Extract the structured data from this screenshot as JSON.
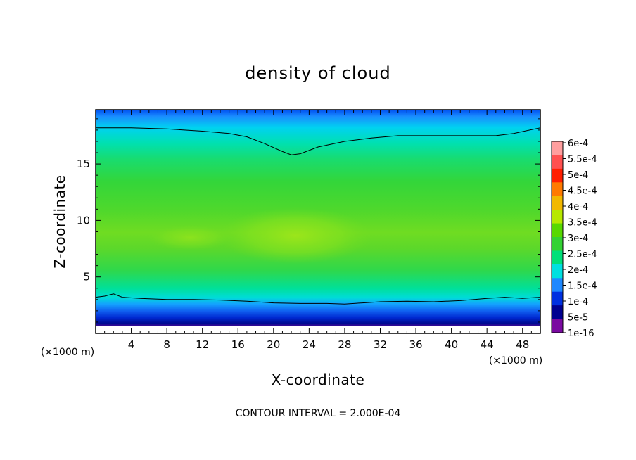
{
  "chart_data": {
    "type": "heatmap",
    "title": "density of cloud",
    "xlabel": "X-coordinate",
    "ylabel": "Z-coordinate",
    "x_unit": "(×1000 m)",
    "z_unit": "(×1000 m)",
    "xlim": [
      0,
      50
    ],
    "ylim": [
      0,
      19.8
    ],
    "x_ticks": [
      4,
      8,
      12,
      16,
      20,
      24,
      28,
      32,
      36,
      40,
      44,
      48
    ],
    "x_tick_labels": [
      "4",
      "8",
      "12",
      "16",
      "20",
      "24",
      "28",
      "32",
      "36",
      "40",
      "44",
      "48"
    ],
    "y_ticks": [
      5,
      10,
      15
    ],
    "y_tick_labels": [
      "5",
      "10",
      "15"
    ],
    "contour_interval_text": "CONTOUR INTERVAL = 2.000E-04",
    "colorbar": {
      "labels": [
        "6e-4",
        "5.5e-4",
        "5e-4",
        "4.5e-4",
        "4e-4",
        "3.5e-4",
        "3e-4",
        "2.5e-4",
        "2e-4",
        "1.5e-4",
        "1e-4",
        "5e-5",
        "1e-16"
      ],
      "colors": [
        "#ff9e9e",
        "#ff5050",
        "#ff1e00",
        "#ff7a00",
        "#f2b800",
        "#b7e800",
        "#58d800",
        "#33d233",
        "#00e07a",
        "#00e0e0",
        "#1e88ff",
        "#0030e0",
        "#000090",
        "#7a0aa0"
      ]
    },
    "contours": [
      {
        "level": "2e-4",
        "upper": [
          [
            0,
            18.2
          ],
          [
            4,
            18.2
          ],
          [
            8,
            18.1
          ],
          [
            12,
            17.9
          ],
          [
            15,
            17.7
          ],
          [
            17,
            17.4
          ],
          [
            19,
            16.8
          ],
          [
            21,
            16.1
          ],
          [
            22,
            15.8
          ],
          [
            23,
            15.9
          ],
          [
            25,
            16.5
          ],
          [
            28,
            17.0
          ],
          [
            31,
            17.3
          ],
          [
            34,
            17.5
          ],
          [
            38,
            17.5
          ],
          [
            42,
            17.5
          ],
          [
            45,
            17.5
          ],
          [
            47,
            17.7
          ],
          [
            50,
            18.2
          ]
        ],
        "lower": [
          [
            0,
            3.2
          ],
          [
            1,
            3.3
          ],
          [
            2,
            3.5
          ],
          [
            3,
            3.2
          ],
          [
            5,
            3.1
          ],
          [
            8,
            3.0
          ],
          [
            11,
            3.0
          ],
          [
            14,
            2.95
          ],
          [
            17,
            2.85
          ],
          [
            20,
            2.7
          ],
          [
            23,
            2.65
          ],
          [
            26,
            2.65
          ],
          [
            28,
            2.6
          ],
          [
            30,
            2.7
          ],
          [
            32,
            2.8
          ],
          [
            35,
            2.85
          ],
          [
            38,
            2.8
          ],
          [
            41,
            2.9
          ],
          [
            44,
            3.1
          ],
          [
            46,
            3.2
          ],
          [
            48,
            3.1
          ],
          [
            50,
            3.2
          ]
        ]
      }
    ]
  }
}
